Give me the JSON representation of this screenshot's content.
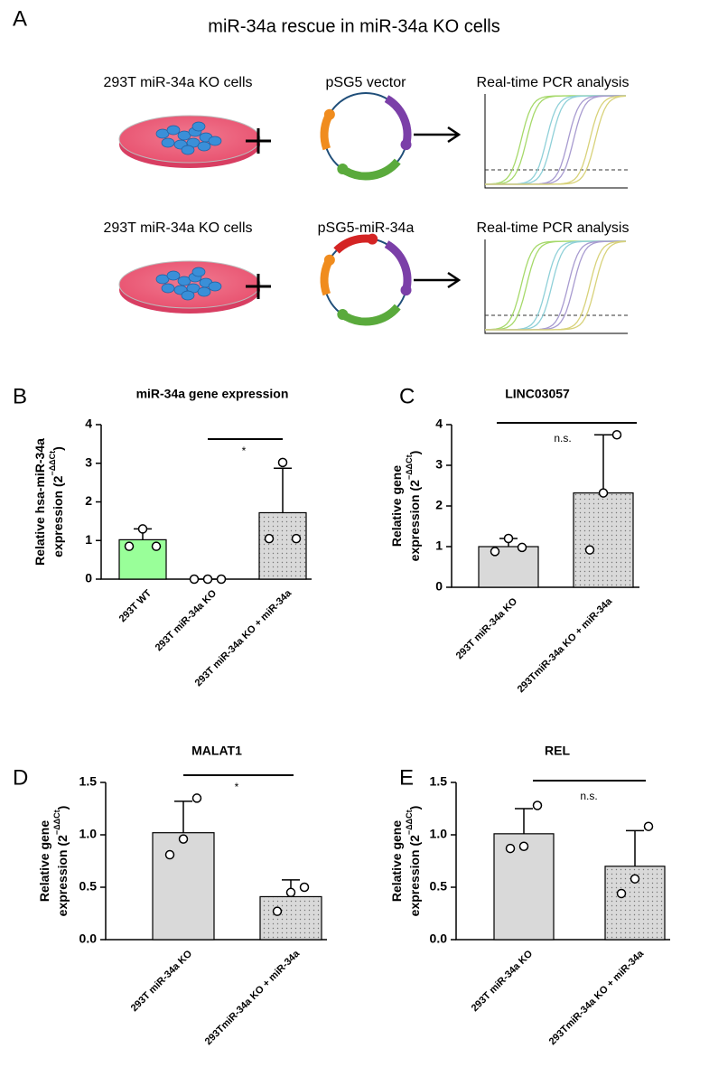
{
  "schematic": {
    "panel": "A",
    "title": "miR-34a rescue in miR-34a KO cells",
    "rows": [
      {
        "cells": "293T miR-34a KO cells",
        "vector": "pSG5 vector",
        "analysis": "Real-time PCR analysis"
      },
      {
        "cells": "293T miR-34a KO cells",
        "vector": "pSG5-miR-34a",
        "analysis": "Real-time PCR analysis"
      }
    ]
  },
  "chart_data": [
    {
      "type": "bar",
      "panel": "B",
      "title": "miR-34a gene expression",
      "ylabel": [
        "Relative  hsa-miR-34a",
        "expression (2"
      ],
      "ylabel_sup": "−ΔΔCt",
      "ylabel_end": ")",
      "categories": [
        "293T WT",
        "293T miR-34a KO",
        "293T miR-34a KO + miR-34a"
      ],
      "values": [
        1.02,
        0,
        1.72
      ],
      "errors": [
        0.28,
        0,
        1.15
      ],
      "points": [
        [
          0.85,
          1.3,
          0.85
        ],
        [
          0,
          0,
          0
        ],
        [
          1.05,
          3.02,
          1.05
        ]
      ],
      "colors": [
        "#99ff99",
        "#d9d9d9",
        "#d9d9d9"
      ],
      "dotted": [
        false,
        false,
        true
      ],
      "significance": "*",
      "ylim": [
        0,
        4
      ],
      "yticks": [
        0,
        1,
        2,
        3,
        4
      ]
    },
    {
      "type": "bar",
      "panel": "C",
      "title": "LINC03057",
      "ylabel": [
        "Relative gene",
        "expression (2"
      ],
      "ylabel_sup": "−ΔΔCt",
      "ylabel_end": ")",
      "categories": [
        "293T miR-34a KO",
        "293TmiR-34a KO + miR-34a"
      ],
      "values": [
        1.0,
        2.32
      ],
      "errors": [
        0.2,
        1.43
      ],
      "points": [
        [
          0.88,
          1.2,
          0.98
        ],
        [
          0.92,
          2.32,
          3.75
        ]
      ],
      "colors": [
        "#d9d9d9",
        "#d9d9d9"
      ],
      "dotted": [
        false,
        true
      ],
      "significance": "n.s.",
      "ylim": [
        0,
        4
      ],
      "yticks": [
        0,
        1,
        2,
        3,
        4
      ]
    },
    {
      "type": "bar",
      "panel": "D",
      "title": "MALAT1",
      "ylabel": [
        "Relative gene",
        "expression (2"
      ],
      "ylabel_sup": "−ΔΔCt",
      "ylabel_end": ")",
      "categories": [
        "293T miR-34a KO",
        "293TmiR-34a KO + miR-34a"
      ],
      "values": [
        1.02,
        0.41
      ],
      "errors": [
        0.3,
        0.16
      ],
      "points": [
        [
          0.81,
          0.96,
          1.35
        ],
        [
          0.27,
          0.45,
          0.5
        ]
      ],
      "colors": [
        "#d9d9d9",
        "#d9d9d9"
      ],
      "dotted": [
        false,
        true
      ],
      "significance": "*",
      "ylim": [
        0,
        1.5
      ],
      "yticks": [
        {
          "value": 0,
          "label": "0.0"
        },
        0.5,
        {
          "value": 1,
          "label": "1.0"
        },
        1.5
      ]
    },
    {
      "type": "bar",
      "panel": "E",
      "title": "REL",
      "ylabel": [
        "Relative gene",
        "expression (2"
      ],
      "ylabel_sup": "−ΔΔCt",
      "ylabel_end": ")",
      "categories": [
        "293T miR-34a KO",
        "293TmiR-34a KO + miR-34a"
      ],
      "values": [
        1.01,
        0.7
      ],
      "errors": [
        0.24,
        0.34
      ],
      "points": [
        [
          0.87,
          0.89,
          1.28
        ],
        [
          0.44,
          0.58,
          1.08
        ]
      ],
      "colors": [
        "#d9d9d9",
        "#d9d9d9"
      ],
      "dotted": [
        false,
        true
      ],
      "significance": "n.s.",
      "ylim": [
        0,
        1.5
      ],
      "yticks": [
        {
          "value": 0,
          "label": "0.0"
        },
        0.5,
        {
          "value": 1,
          "label": "1.0"
        },
        1.5
      ]
    }
  ]
}
